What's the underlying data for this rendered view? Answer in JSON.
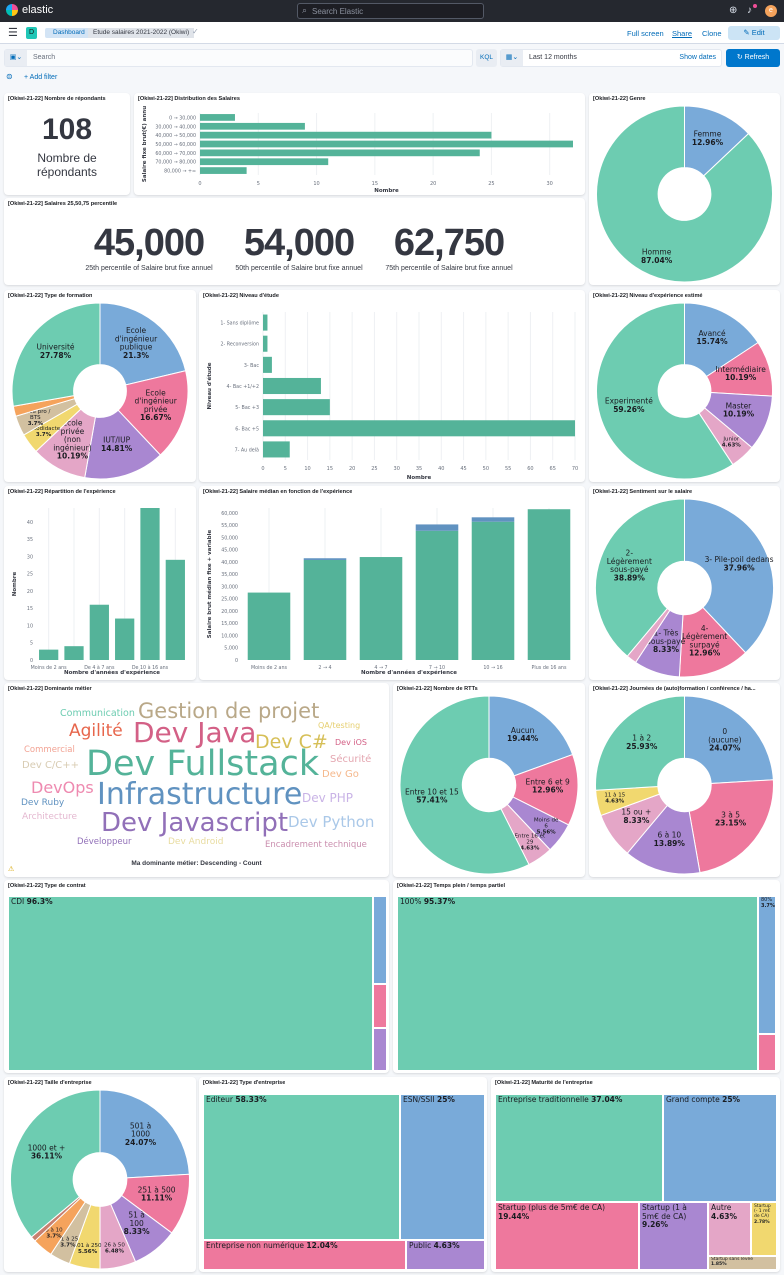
{
  "header": {
    "brand": "elastic",
    "search_placeholder": "Search Elastic",
    "avatar": "e"
  },
  "nav": {
    "badge": "D",
    "breadcrumbs": [
      "Dashboard",
      "Etude salaires 2021-2022 (Okiwi)"
    ],
    "full_screen": "Full screen",
    "share": "Share",
    "clone": "Clone",
    "edit": "Edit"
  },
  "query": {
    "placeholder": "Search",
    "language": "KQL",
    "time_range": "Last 12 months",
    "show_dates": "Show dates",
    "refresh": "Refresh",
    "add_filter": "+ Add filter"
  },
  "colors": {
    "teal": "#6dccb1",
    "blue": "#79aad9",
    "pink": "#ee789d",
    "purple": "#a987d1",
    "lpink": "#e4a6c7",
    "yellow": "#f1d86f",
    "tan": "#d2c0a0",
    "orange": "#f5a35c",
    "brown": "#c8806f",
    "bar": "#54b399",
    "bar2": "#6092c0"
  },
  "panels": {
    "respondents": {
      "title": "[Okiwi-21-22] Nombre de répondants",
      "value": "108",
      "label": "Nombre de répondants"
    },
    "percentiles": {
      "title": "[Okiwi-21-22] Salaires 25,50,75 percentile",
      "items": [
        {
          "value": "45,000",
          "label": "25th percentile of Salaire brut fixe annuel"
        },
        {
          "value": "54,000",
          "label": "50th percentile of Salaire brut fixe annuel"
        },
        {
          "value": "62,750",
          "label": "75th percentile of Salaire brut fixe annuel"
        }
      ]
    },
    "distribution": {
      "title": "[Okiwi-21-22] Distribution des Salaires"
    },
    "genre": {
      "title": "[Okiwi-21-22] Genre"
    },
    "formation": {
      "title": "[Okiwi-21-22] Type de formation"
    },
    "etude": {
      "title": "[Okiwi-21-22] Niveau d'étude"
    },
    "experience_level": {
      "title": "[Okiwi-21-22] Niveau d'expérience estimé"
    },
    "repartition": {
      "title": "[Okiwi-21-22] Répartition de l'expérience"
    },
    "salaire_median": {
      "title": "[Okiwi-21-22] Salaire médian en fonction de l'expérience"
    },
    "sentiment": {
      "title": "[Okiwi-21-22] Sentiment sur le salaire"
    },
    "dominante": {
      "title": "[Okiwi-21-22] Dominante métier",
      "footer": "Ma dominante métier: Descending - Count",
      "words": [
        "Communication",
        "Gestion de projet",
        "Agilité",
        "Dev Java",
        "Dev C#",
        "QA/testing",
        "Dev iOS",
        "Commercial",
        "Dev C/C++",
        "Dev Fullstack",
        "Sécurité",
        "Dev Go",
        "DevOps",
        "Infrastructure",
        "Dev PHP",
        "Dev Ruby",
        "Architecture",
        "Dev Javascript",
        "Dev Python",
        "Développeur",
        "Dev Android",
        "Encadrement technique"
      ]
    },
    "rtt": {
      "title": "[Okiwi-21-22] Nombre de RTTs"
    },
    "journees": {
      "title": "[Okiwi-21-22] Journées de (auto)formation / conférence / ha..."
    },
    "contrat": {
      "title": "[Okiwi-21-22] Type de contrat",
      "cells": [
        {
          "label": "CDI",
          "pct": "96.3%",
          "value": 96.3
        },
        {
          "label": "",
          "pct": "",
          "value": 1.85
        },
        {
          "label": "",
          "pct": "",
          "value": 0.93
        },
        {
          "label": "",
          "pct": "",
          "value": 0.93
        }
      ]
    },
    "temps": {
      "title": "[Okiwi-21-22] Temps plein / temps partiel",
      "cells": [
        {
          "label": "100%",
          "pct": "95.37%",
          "value": 95.37
        },
        {
          "label": "80%",
          "pct": "3.7%",
          "value": 3.7
        },
        {
          "label": "",
          "pct": "",
          "value": 0.93
        }
      ]
    },
    "taille": {
      "title": "[Okiwi-21-22] Taille d'entreprise"
    },
    "type_entreprise": {
      "title": "[Okiwi-21-22] Type d'entreprise",
      "cells": [
        {
          "label": "Editeur",
          "pct": "58.33%",
          "value": 58.33
        },
        {
          "label": "ESN/SSII",
          "pct": "25%",
          "value": 25
        },
        {
          "label": "Entreprise non numérique",
          "pct": "12.04%",
          "value": 12.04
        },
        {
          "label": "Public",
          "pct": "4.63%",
          "value": 4.63
        }
      ]
    },
    "maturite": {
      "title": "[Okiwi-21-22] Maturité de l'entreprise",
      "cells": [
        {
          "label": "Entreprise traditionnelle",
          "pct": "37.04%",
          "value": 37.04
        },
        {
          "label": "Grand compte",
          "pct": "25%",
          "value": 25
        },
        {
          "label": "Startup (plus de 5m€ de CA)",
          "pct": "19.44%",
          "value": 19.44
        },
        {
          "label": "Startup (1 à 5m€ de CA)",
          "pct": "9.26%",
          "value": 9.26
        },
        {
          "label": "Autre",
          "pct": "4.63%",
          "value": 4.63
        },
        {
          "label": "Startup (- 1 m€ de CA)",
          "pct": "2.78%",
          "value": 2.78
        },
        {
          "label": "Startup sans levée",
          "pct": "1.85%",
          "value": 1.85
        }
      ]
    }
  },
  "chart_data": [
    {
      "id": "distribution",
      "type": "bar",
      "orientation": "horizontal",
      "categories": [
        "0 → 30,000",
        "30,000 → 40,000",
        "40,000 → 50,000",
        "50,000 → 60,000",
        "60,000 → 70,000",
        "70,000 → 80,000",
        "80,000 → +∞"
      ],
      "values": [
        3,
        9,
        25,
        32,
        24,
        11,
        4
      ],
      "xlabel": "Nombre",
      "ylabel": "Salaire fixe brut(€) annu",
      "xlim": [
        0,
        32
      ],
      "xticks": [
        0,
        5,
        10,
        15,
        20,
        25,
        30
      ]
    },
    {
      "id": "etude",
      "type": "bar",
      "orientation": "horizontal",
      "categories": [
        "1- Sans diplôme",
        "2- Reconversion",
        "3- Bac",
        "4- Bac +1/+2",
        "5- Bac +3",
        "6- Bac +5",
        "7- Au delà"
      ],
      "values": [
        1,
        1,
        2,
        13,
        15,
        70,
        6
      ],
      "xlabel": "Nombre",
      "ylabel": "Niveau d'étude",
      "xlim": [
        0,
        70
      ],
      "xticks": [
        0,
        5,
        10,
        15,
        20,
        25,
        30,
        35,
        40,
        45,
        50,
        55,
        60,
        65,
        70
      ]
    },
    {
      "id": "repartition",
      "type": "bar",
      "orientation": "vertical",
      "categories": [
        "Moins de 2 ans",
        "",
        "De 4 à 7 ans",
        "",
        "De 10 à 16 ans",
        ""
      ],
      "values": [
        3,
        4,
        16,
        12,
        44,
        29
      ],
      "xlabel": "Nombre d'années d'expérience",
      "ylabel": "Nombre",
      "ylim": [
        0,
        44
      ],
      "yticks": [
        0,
        5,
        10,
        15,
        20,
        25,
        30,
        35,
        40
      ]
    },
    {
      "id": "salaire_median",
      "type": "bar",
      "orientation": "vertical",
      "stacked": true,
      "categories": [
        "Moins de 2 ans",
        "2 → 4",
        "4 → 7",
        "7 → 10",
        "10 → 16",
        "Plus de 16 ans"
      ],
      "series": [
        {
          "name": "fixe",
          "values": [
            27500,
            40800,
            42000,
            52700,
            56400,
            61500
          ]
        },
        {
          "name": "variable",
          "values": [
            0,
            700,
            0,
            2600,
            1800,
            0
          ]
        }
      ],
      "xlabel": "Nombre d'années d'expérience",
      "ylabel": "Salaire brut médian fixe + variable",
      "ylim": [
        0,
        62000
      ],
      "yticks": [
        0,
        5000,
        10000,
        15000,
        20000,
        25000,
        30000,
        35000,
        40000,
        45000,
        50000,
        55000,
        60000
      ],
      "ytick_labels": [
        "0",
        "5,000",
        "10,000",
        "15,000",
        "20,000",
        "25,000",
        "30,000",
        "35,000",
        "40,000",
        "45,000",
        "50,000",
        "55,000",
        "60,000"
      ]
    },
    {
      "id": "genre",
      "type": "pie",
      "slices": [
        {
          "label": "Femme",
          "pct": "12.96%",
          "value": 12.96,
          "color": "blue"
        },
        {
          "label": "Homme",
          "pct": "87.04%",
          "value": 87.04,
          "color": "teal",
          "inline": true
        }
      ]
    },
    {
      "id": "formation",
      "type": "pie",
      "slices": [
        {
          "label": "Ecole\nd'ingénieur\npublique",
          "pct": "21.3%",
          "value": 21.3,
          "color": "blue"
        },
        {
          "label": "Ecole\nd'ingénieur\nprivée",
          "pct": "16.67%",
          "value": 16.67,
          "color": "pink"
        },
        {
          "label": "IUT/IUP",
          "pct": "14.81%",
          "value": 14.81,
          "color": "purple"
        },
        {
          "label": "Ecole\nprivée\n(non\ningénieur)",
          "pct": "10.19%",
          "value": 10.19,
          "color": "lpink"
        },
        {
          "label": "Autodidacte",
          "pct": "3.7%",
          "value": 3.7,
          "color": "yellow"
        },
        {
          "label": "Lycée pro /\nBTS",
          "pct": "3.7%",
          "value": 3.7,
          "color": "tan"
        },
        {
          "label": "",
          "pct": "",
          "value": 1.85,
          "color": "orange"
        },
        {
          "label": "Université",
          "pct": "27.78%",
          "value": 27.78,
          "color": "teal"
        }
      ]
    },
    {
      "id": "experience_level",
      "type": "pie",
      "slices": [
        {
          "label": "Avancé",
          "pct": "15.74%",
          "value": 15.74,
          "color": "blue"
        },
        {
          "label": "Intermédiaire",
          "pct": "10.19%",
          "value": 10.19,
          "color": "pink"
        },
        {
          "label": "Master",
          "pct": "10.19%",
          "value": 10.19,
          "color": "purple"
        },
        {
          "label": "Junior",
          "pct": "4.63%",
          "value": 4.63,
          "color": "lpink"
        },
        {
          "label": "Experimenté",
          "pct": "59.26%",
          "value": 59.26,
          "color": "teal"
        }
      ]
    },
    {
      "id": "sentiment",
      "type": "pie",
      "slices": [
        {
          "label": "3- Pile-poil dedans",
          "pct": "37.96%",
          "value": 37.96,
          "color": "blue"
        },
        {
          "label": "4-\nLégèrement\nsurpayé",
          "pct": "12.96%",
          "value": 12.96,
          "color": "pink"
        },
        {
          "label": "1- Très\nsous-payé",
          "pct": "8.33%",
          "value": 8.33,
          "color": "purple"
        },
        {
          "label": "",
          "pct": "",
          "value": 1.86,
          "color": "lpink"
        },
        {
          "label": "2-\nLégèrement\nsous-payé",
          "pct": "38.89%",
          "value": 38.89,
          "color": "teal"
        }
      ]
    },
    {
      "id": "rtt",
      "type": "pie",
      "slices": [
        {
          "label": "Aucun",
          "pct": "19.44%",
          "value": 19.44,
          "color": "blue"
        },
        {
          "label": "Entre 6 et 9",
          "pct": "12.96%",
          "value": 12.96,
          "color": "pink"
        },
        {
          "label": "Moins de\n6",
          "pct": "5.56%",
          "value": 5.56,
          "color": "purple"
        },
        {
          "label": "Entre 16 et\n29",
          "pct": "4.63%",
          "value": 4.63,
          "color": "lpink"
        },
        {
          "label": "Entre 10 et 15",
          "pct": "57.41%",
          "value": 57.41,
          "color": "teal"
        }
      ]
    },
    {
      "id": "journees",
      "type": "pie",
      "slices": [
        {
          "label": "0\n(aucune)",
          "pct": "24.07%",
          "value": 24.07,
          "color": "blue"
        },
        {
          "label": "3 à 5",
          "pct": "23.15%",
          "value": 23.15,
          "color": "pink"
        },
        {
          "label": "6 à 10",
          "pct": "13.89%",
          "value": 13.89,
          "color": "purple"
        },
        {
          "label": "15 ou +",
          "pct": "8.33%",
          "value": 8.33,
          "color": "lpink"
        },
        {
          "label": "11 à 15",
          "pct": "4.63%",
          "value": 4.63,
          "color": "yellow"
        },
        {
          "label": "1 à 2",
          "pct": "25.93%",
          "value": 25.93,
          "color": "teal"
        }
      ]
    },
    {
      "id": "taille",
      "type": "pie",
      "slices": [
        {
          "label": "501 à\n1000",
          "pct": "24.07%",
          "value": 24.07,
          "color": "blue"
        },
        {
          "label": "251 à 500",
          "pct": "11.11%",
          "value": 11.11,
          "color": "pink"
        },
        {
          "label": "51 à\n100",
          "pct": "8.33%",
          "value": 8.33,
          "color": "purple"
        },
        {
          "label": "26 à 50",
          "pct": "6.48%",
          "value": 6.48,
          "color": "lpink"
        },
        {
          "label": "101 à 250",
          "pct": "5.56%",
          "value": 5.56,
          "color": "yellow"
        },
        {
          "label": "11 à 25",
          "pct": "3.7%",
          "value": 3.7,
          "color": "tan"
        },
        {
          "label": "6 à 10",
          "pct": "3.7%",
          "value": 3.7,
          "color": "orange"
        },
        {
          "label": "",
          "pct": "",
          "value": 0.93,
          "color": "brown"
        },
        {
          "label": "1000 et +",
          "pct": "36.11%",
          "value": 36.11,
          "color": "teal"
        }
      ]
    }
  ]
}
